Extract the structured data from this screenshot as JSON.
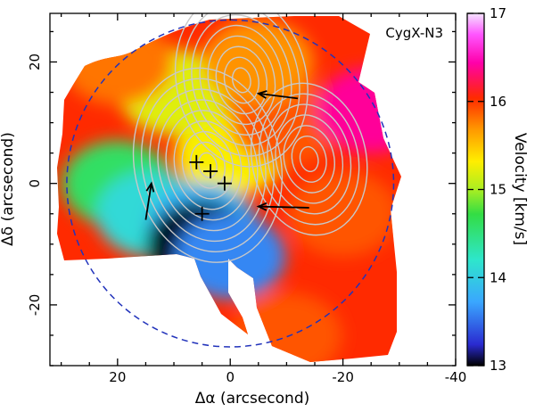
{
  "chart_data": {
    "type": "heatmap",
    "source_label": "CygX-N3",
    "xlabel": "Δα (arcsecond)",
    "ylabel": "Δδ (arcsecond)",
    "xlim": [
      32,
      -40
    ],
    "ylim": [
      -30,
      28
    ],
    "x_ticks": [
      20,
      0,
      -20,
      -40
    ],
    "y_ticks": [
      20,
      0,
      -20
    ],
    "colorbar": {
      "label": "Velocity [km/s]",
      "range": [
        13,
        17
      ],
      "ticks": [
        13,
        14,
        15,
        16,
        17
      ],
      "colormap": [
        "#000000",
        "#2a2ad0",
        "#3aa6ff",
        "#2ee6cc",
        "#33dd44",
        "#aaee22",
        "#ffee00",
        "#ff9900",
        "#ff2a00",
        "#ff00aa",
        "#ff55ff",
        "#f4e4ff"
      ]
    },
    "velocity_regions": [
      {
        "x": 0,
        "y": 5,
        "velocity": 15.3
      },
      {
        "x": 10,
        "y": 15,
        "velocity": 15.2
      },
      {
        "x": 20,
        "y": 0,
        "velocity": 14.6
      },
      {
        "x": 14,
        "y": -5,
        "velocity": 14.1
      },
      {
        "x": 5,
        "y": -7,
        "velocity": 13.8
      },
      {
        "x": 5,
        "y": -10,
        "velocity": 13.0
      },
      {
        "x": 0,
        "y": -12,
        "velocity": 13.6
      },
      {
        "x": -10,
        "y": 10,
        "velocity": 15.9
      },
      {
        "x": -20,
        "y": -5,
        "velocity": 15.9
      },
      {
        "x": -25,
        "y": 12,
        "velocity": 16.4
      },
      {
        "x": -10,
        "y": -25,
        "velocity": 15.9
      },
      {
        "x": -5,
        "y": 20,
        "velocity": 15.7
      },
      {
        "x": 20,
        "y": 20,
        "velocity": 15.8
      }
    ],
    "markers": [
      {
        "x": 6,
        "y": 3.5
      },
      {
        "x": 3.5,
        "y": 2
      },
      {
        "x": 1,
        "y": 0
      },
      {
        "x": 5,
        "y": -5
      }
    ],
    "arrows": [
      {
        "from": [
          -12,
          14
        ],
        "to": [
          -5,
          14.8
        ]
      },
      {
        "from": [
          -14,
          -4
        ],
        "to": [
          -5,
          -3.8
        ]
      },
      {
        "from": [
          15,
          -6
        ],
        "to": [
          14,
          0
        ]
      }
    ],
    "beam_circle": {
      "x": 0,
      "y": 0,
      "radius": 29
    },
    "contour_peaks": [
      {
        "x": 4,
        "y": 3,
        "levels": 9
      },
      {
        "x": -2,
        "y": 17,
        "levels": 8
      },
      {
        "x": -14,
        "y": 4,
        "levels": 7
      }
    ]
  }
}
